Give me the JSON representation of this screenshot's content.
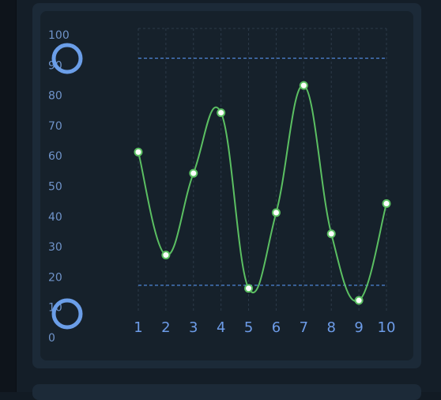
{
  "chart_data": {
    "type": "line",
    "title": "",
    "xlabel": "",
    "ylabel": "",
    "categories": [
      "1",
      "2",
      "3",
      "4",
      "5",
      "6",
      "7",
      "8",
      "9",
      "10"
    ],
    "series": [
      {
        "values": [
          61,
          27,
          54,
          74,
          16,
          41,
          83,
          34,
          12,
          44
        ]
      }
    ],
    "y_ticks": [
      "0",
      "10",
      "20",
      "30",
      "40",
      "50",
      "60",
      "70",
      "80",
      "90",
      "100"
    ],
    "ylim": [
      0,
      100
    ],
    "reference_lines": [
      92,
      17
    ],
    "grid": true,
    "smooth": true,
    "colors": {
      "line": "#5bbf62",
      "point_fill": "#ffffff",
      "y_tick": "#6f93c9",
      "x_tick": "#6d9ce8",
      "reference": "#4f86d8",
      "grid": "#2c3a49",
      "handle": "#6b9ee8"
    },
    "handles": [
      "upper-range-handle",
      "lower-range-handle"
    ]
  }
}
